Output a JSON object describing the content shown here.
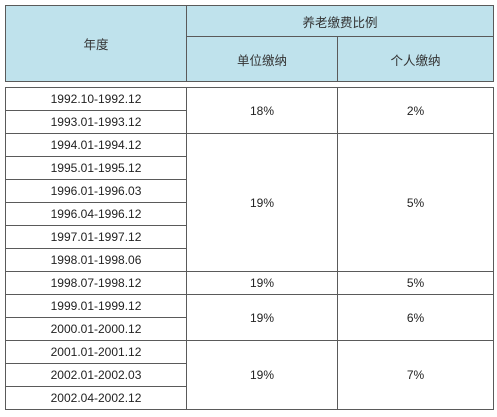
{
  "header": {
    "year_label": "年度",
    "group_label": "养老缴费比例",
    "employer_label": "单位缴纳",
    "personal_label": "个人缴纳"
  },
  "rows": [
    {
      "period": "1992.10-1992.12"
    },
    {
      "period": "1993.01-1993.12"
    },
    {
      "period": "1994.01-1994.12"
    },
    {
      "period": "1995.01-1995.12"
    },
    {
      "period": "1996.01-1996.03"
    },
    {
      "period": "1996.04-1996.12"
    },
    {
      "period": "1997.01-1997.12"
    },
    {
      "period": "1998.01-1998.06"
    },
    {
      "period": "1998.07-1998.12"
    },
    {
      "period": "1999.01-1999.12"
    },
    {
      "period": "2000.01-2000.12"
    },
    {
      "period": "2001.01-2001.12"
    },
    {
      "period": "2002.01-2002.03"
    },
    {
      "period": "2002.04-2002.12"
    }
  ],
  "groups": [
    {
      "employer": "18%",
      "personal": "2%"
    },
    {
      "employer": "19%",
      "personal": "5%"
    },
    {
      "employer": "19%",
      "personal": "5%"
    },
    {
      "employer": "19%",
      "personal": "6%"
    },
    {
      "employer": "19%",
      "personal": "7%"
    }
  ]
}
